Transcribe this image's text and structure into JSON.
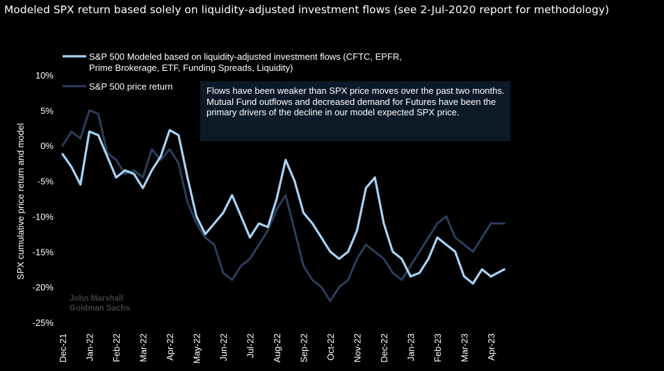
{
  "title": "Modeled SPX return based solely on liquidity-adjusted investment flows (see 2-Jul-2020 report for methodology)",
  "annotation": "Flows have been weaker than SPX price moves over the past two months. Mutual Fund outflows and decreased demand for Futures have been the primary drivers of the decline in our model expected SPX price.",
  "watermark": [
    "John Marshall",
    "Goldman Sachs"
  ],
  "colors": {
    "background": "#000000",
    "model_series": "#a9d3f5",
    "price_series": "#2b3e5c",
    "annotation_box": "#0c1a27"
  },
  "chart_data": {
    "type": "line",
    "ylabel": "SPX cumulative price return and model",
    "xlabel": "",
    "ylim": [
      -0.25,
      0.1
    ],
    "y_ticks": [
      0.1,
      0.05,
      0.0,
      -0.05,
      -0.1,
      -0.15,
      -0.2,
      -0.25
    ],
    "y_tick_labels": [
      "10%",
      "5%",
      "0%",
      "-5%",
      "-10%",
      "-15%",
      "-20%",
      "-25%"
    ],
    "x_tick_labels": [
      "Dec-21",
      "Jan-22",
      "Feb-22",
      "Mar-22",
      "Apr-22",
      "May-22",
      "Jun-22",
      "Jul-22",
      "Aug-22",
      "Sep-22",
      "Oct-22",
      "Nov-22",
      "Dec-22",
      "Jan-23",
      "Feb-23",
      "Mar-23",
      "Apr-23"
    ],
    "grid": false,
    "legend_position": "top-left",
    "series": [
      {
        "name": "S&P 500 Modeled based on liquidity-adjusted investment flows (CFTC, EPFR, Prime Brokerage, ETF, Funding Spreads, Liquidity)",
        "color": "#a9d3f5",
        "x": [
          "Dec-21",
          "Dec-21",
          "Dec-21",
          "Jan-22",
          "Jan-22",
          "Jan-22",
          "Feb-22",
          "Feb-22",
          "Feb-22",
          "Mar-22",
          "Mar-22",
          "Mar-22",
          "Apr-22",
          "Apr-22",
          "Apr-22",
          "May-22",
          "May-22",
          "May-22",
          "Jun-22",
          "Jun-22",
          "Jun-22",
          "Jul-22",
          "Jul-22",
          "Jul-22",
          "Aug-22",
          "Aug-22",
          "Aug-22",
          "Sep-22",
          "Sep-22",
          "Sep-22",
          "Oct-22",
          "Oct-22",
          "Oct-22",
          "Nov-22",
          "Nov-22",
          "Nov-22",
          "Dec-22",
          "Dec-22",
          "Dec-22",
          "Jan-23",
          "Jan-23",
          "Jan-23",
          "Feb-23",
          "Feb-23",
          "Feb-23",
          "Mar-23",
          "Mar-23",
          "Mar-23",
          "Apr-23",
          "Apr-23"
        ],
        "y": [
          -0.012,
          -0.03,
          -0.055,
          0.02,
          0.015,
          -0.015,
          -0.045,
          -0.035,
          -0.04,
          -0.06,
          -0.035,
          -0.015,
          0.022,
          0.015,
          -0.045,
          -0.1,
          -0.125,
          -0.11,
          -0.095,
          -0.07,
          -0.1,
          -0.13,
          -0.11,
          -0.115,
          -0.075,
          -0.02,
          -0.05,
          -0.095,
          -0.11,
          -0.13,
          -0.15,
          -0.16,
          -0.15,
          -0.12,
          -0.06,
          -0.045,
          -0.11,
          -0.15,
          -0.16,
          -0.185,
          -0.18,
          -0.16,
          -0.13,
          -0.14,
          -0.15,
          -0.185,
          -0.195,
          -0.175,
          -0.185,
          -0.175
        ]
      },
      {
        "name": "S&P 500 price return",
        "color": "#2b3e5c",
        "x": [
          "Dec-21",
          "Dec-21",
          "Dec-21",
          "Jan-22",
          "Jan-22",
          "Jan-22",
          "Feb-22",
          "Feb-22",
          "Feb-22",
          "Mar-22",
          "Mar-22",
          "Mar-22",
          "Apr-22",
          "Apr-22",
          "Apr-22",
          "May-22",
          "May-22",
          "May-22",
          "Jun-22",
          "Jun-22",
          "Jun-22",
          "Jul-22",
          "Jul-22",
          "Jul-22",
          "Aug-22",
          "Aug-22",
          "Aug-22",
          "Sep-22",
          "Sep-22",
          "Sep-22",
          "Oct-22",
          "Oct-22",
          "Oct-22",
          "Nov-22",
          "Nov-22",
          "Nov-22",
          "Dec-22",
          "Dec-22",
          "Dec-22",
          "Jan-23",
          "Jan-23",
          "Jan-23",
          "Feb-23",
          "Feb-23",
          "Feb-23",
          "Mar-23",
          "Mar-23",
          "Mar-23",
          "Apr-23",
          "Apr-23"
        ],
        "y": [
          0.0,
          0.02,
          0.01,
          0.05,
          0.045,
          -0.01,
          -0.02,
          -0.04,
          -0.035,
          -0.045,
          -0.005,
          -0.02,
          -0.005,
          -0.025,
          -0.08,
          -0.11,
          -0.13,
          -0.14,
          -0.18,
          -0.19,
          -0.17,
          -0.16,
          -0.14,
          -0.12,
          -0.09,
          -0.07,
          -0.12,
          -0.17,
          -0.19,
          -0.2,
          -0.22,
          -0.2,
          -0.19,
          -0.16,
          -0.14,
          -0.15,
          -0.16,
          -0.18,
          -0.19,
          -0.17,
          -0.15,
          -0.13,
          -0.11,
          -0.1,
          -0.13,
          -0.14,
          -0.15,
          -0.13,
          -0.11,
          -0.11
        ]
      }
    ]
  }
}
